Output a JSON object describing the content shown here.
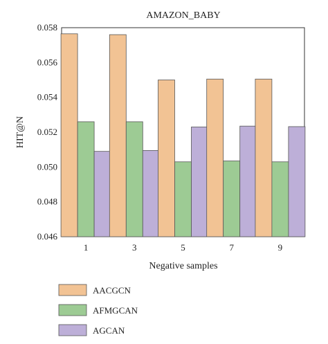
{
  "chart_data": {
    "type": "bar",
    "title": "AMAZON_BABY",
    "xlabel": "Negative samples",
    "ylabel": "HIT@N",
    "categories": [
      "1",
      "3",
      "5",
      "7",
      "9"
    ],
    "ylim": [
      0.046,
      0.058
    ],
    "yticks": [
      "0.046",
      "0.048",
      "0.050",
      "0.052",
      "0.054",
      "0.056",
      "0.058"
    ],
    "grid": false,
    "legend_position": "bottom-left",
    "series": [
      {
        "name": "AACGCN",
        "color": "#F2C394",
        "values": [
          0.05765,
          0.0576,
          0.055,
          0.05505,
          0.05505
        ]
      },
      {
        "name": "AFMGCAN",
        "color": "#9DCB94",
        "values": [
          0.0526,
          0.0526,
          0.0503,
          0.05035,
          0.0503
        ]
      },
      {
        "name": "AGCAN",
        "color": "#BDAFD8",
        "values": [
          0.0509,
          0.05095,
          0.0523,
          0.05235,
          0.05232
        ]
      }
    ]
  }
}
